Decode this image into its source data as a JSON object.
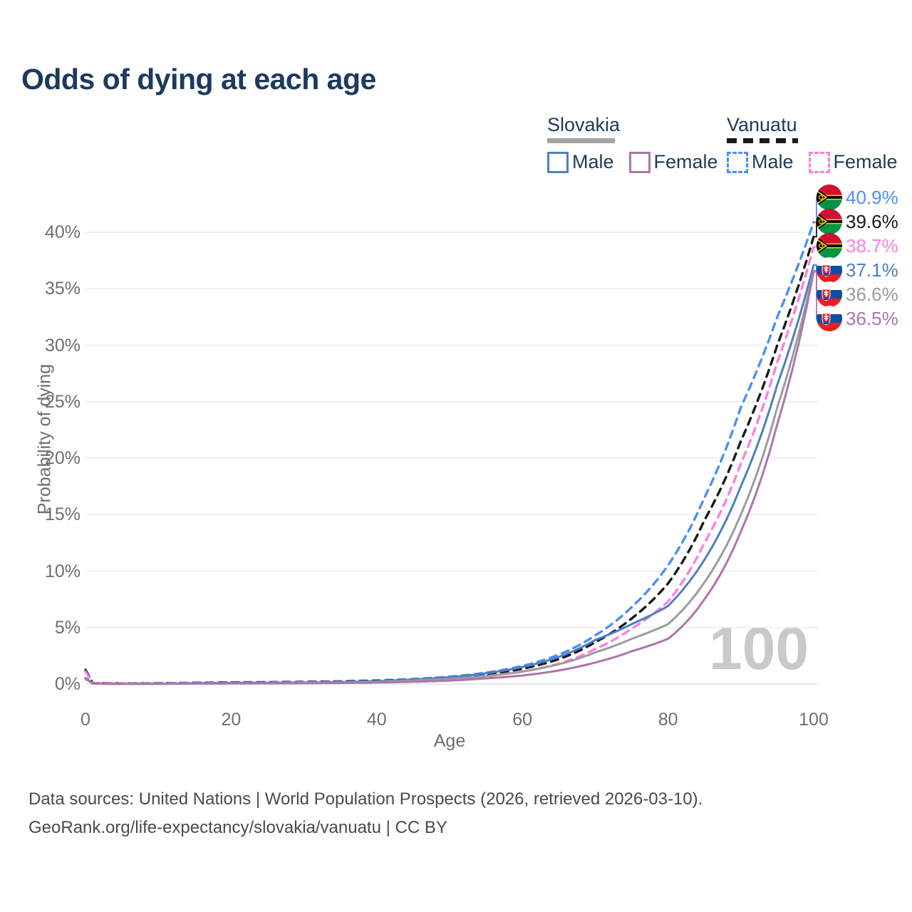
{
  "title": "Odds of dying at each age",
  "legend": {
    "groups": [
      {
        "label": "Slovakia",
        "line_style": "solid",
        "underline_color": "#a3a3a3",
        "items": [
          {
            "label": "Male",
            "color": "#4d80c0"
          },
          {
            "label": "Female",
            "color": "#ae74ab"
          }
        ]
      },
      {
        "label": "Vanuatu",
        "line_style": "dashed",
        "underline_color": "#1a1a1a",
        "items": [
          {
            "label": "Male",
            "color": "#4a90f4"
          },
          {
            "label": "Female",
            "color": "#fb7fe3"
          }
        ]
      }
    ]
  },
  "axes": {
    "y": {
      "title": "Probability of dying",
      "ticks": [
        "0%",
        "5%",
        "10%",
        "15%",
        "20%",
        "25%",
        "30%",
        "35%",
        "40%"
      ]
    },
    "x": {
      "title": "Age",
      "ticks": [
        "0",
        "20",
        "40",
        "60",
        "80",
        "100"
      ]
    }
  },
  "watermark": "100",
  "footer": {
    "line1": "Data sources: United Nations | World Population Prospects (2026, retrieved 2026-03-10).",
    "line2": "GeoRank.org/life-expectancy/slovakia/vanuatu | CC BY"
  },
  "chart_data": {
    "type": "line",
    "xlabel": "Age",
    "ylabel": "Probability of dying",
    "xlim": [
      0,
      100
    ],
    "ylim": [
      0,
      44
    ],
    "x_unit": "years",
    "y_unit": "percent",
    "grid": "horizontal",
    "legend_position": "top-right",
    "anchor_ages": [
      0,
      1,
      5,
      10,
      15,
      20,
      25,
      30,
      35,
      40,
      45,
      50,
      55,
      60,
      65,
      70,
      75,
      80,
      85,
      90,
      95,
      100
    ],
    "series": [
      {
        "name": "Vanuatu Male",
        "country": "Vanuatu",
        "sex": "Male",
        "color": "#4a90f4",
        "dash": true,
        "end_label": "40.9%",
        "end_value": 40.9,
        "flag": "vanuatu",
        "values": [
          1.3,
          0.1,
          0.06,
          0.07,
          0.12,
          0.15,
          0.17,
          0.2,
          0.25,
          0.32,
          0.45,
          0.65,
          1.0,
          1.6,
          2.6,
          4.3,
          6.8,
          10.5,
          16.5,
          24.5,
          32.5,
          40.9
        ]
      },
      {
        "name": "Vanuatu Both sexes",
        "country": "Vanuatu",
        "sex": "Both",
        "color": "#1a1a1a",
        "dash": true,
        "end_label": "39.6%",
        "end_value": 39.6,
        "flag": "vanuatu",
        "values": [
          1.2,
          0.09,
          0.05,
          0.06,
          0.1,
          0.13,
          0.15,
          0.17,
          0.21,
          0.27,
          0.38,
          0.55,
          0.85,
          1.35,
          2.2,
          3.7,
          5.8,
          8.9,
          14.5,
          21.5,
          30.0,
          39.6
        ]
      },
      {
        "name": "Vanuatu Female",
        "country": "Vanuatu",
        "sex": "Female",
        "color": "#fb7fe3",
        "dash": true,
        "end_label": "38.7%",
        "end_value": 38.7,
        "flag": "vanuatu",
        "values": [
          1.1,
          0.08,
          0.05,
          0.05,
          0.08,
          0.1,
          0.12,
          0.14,
          0.18,
          0.23,
          0.32,
          0.46,
          0.7,
          1.1,
          1.8,
          3.1,
          4.9,
          7.3,
          12.5,
          19.5,
          28.5,
          38.7
        ]
      },
      {
        "name": "Slovakia Male",
        "country": "Slovakia",
        "sex": "Male",
        "color": "#4d80c0",
        "dash": false,
        "end_label": "37.1%",
        "end_value": 37.1,
        "flag": "slovakia",
        "values": [
          0.55,
          0.04,
          0.02,
          0.02,
          0.07,
          0.1,
          0.11,
          0.13,
          0.17,
          0.25,
          0.4,
          0.6,
          0.95,
          1.5,
          2.4,
          3.9,
          5.3,
          6.9,
          11.0,
          17.5,
          26.5,
          37.1
        ]
      },
      {
        "name": "Slovakia Both sexes",
        "country": "Slovakia",
        "sex": "Both",
        "color": "#9c9c9c",
        "dash": false,
        "end_label": "36.6%",
        "end_value": 36.6,
        "flag": "slovakia",
        "values": [
          0.5,
          0.035,
          0.02,
          0.02,
          0.05,
          0.06,
          0.08,
          0.1,
          0.13,
          0.19,
          0.3,
          0.45,
          0.7,
          1.1,
          1.75,
          2.8,
          4.0,
          5.3,
          9.0,
          15.0,
          24.5,
          36.6
        ]
      },
      {
        "name": "Slovakia Female",
        "country": "Slovakia",
        "sex": "Female",
        "color": "#ae74ab",
        "dash": false,
        "end_label": "36.5%",
        "end_value": 36.5,
        "flag": "slovakia",
        "values": [
          0.45,
          0.03,
          0.015,
          0.015,
          0.03,
          0.04,
          0.05,
          0.06,
          0.09,
          0.13,
          0.2,
          0.3,
          0.5,
          0.75,
          1.2,
          1.9,
          2.9,
          4.0,
          7.5,
          13.5,
          23.0,
          36.5
        ]
      }
    ]
  }
}
